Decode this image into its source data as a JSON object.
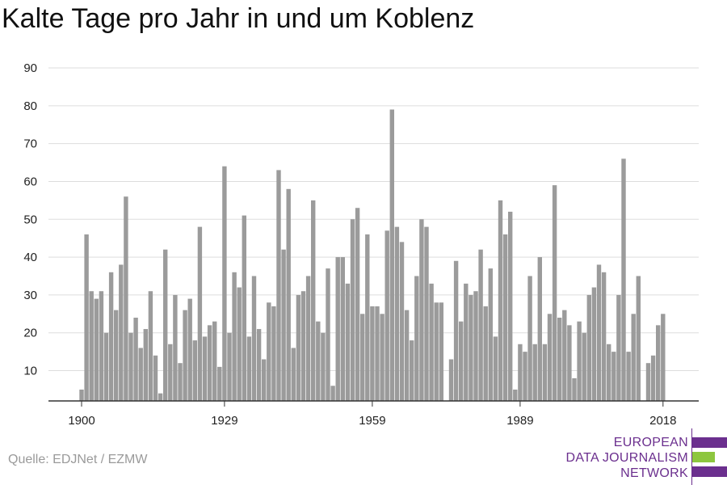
{
  "title": "Kalte Tage pro Jahr in und um Koblenz",
  "source": "Quelle: EDJNet / EZMW",
  "logo": {
    "lines": [
      "EUROPEAN",
      "DATA JOURNALISM",
      "NETWORK"
    ],
    "colors": {
      "purple": "#6b2f8e",
      "green": "#8dc63f"
    }
  },
  "chart_data": {
    "type": "bar",
    "title": "Kalte Tage pro Jahr in und um Koblenz",
    "xlabel": "",
    "ylabel": "",
    "ylim": [
      2,
      90
    ],
    "yticks": [
      10,
      20,
      30,
      40,
      50,
      60,
      70,
      80,
      90
    ],
    "xticks": [
      1900,
      1929,
      1959,
      1989,
      2018
    ],
    "grid": true,
    "bar_color": "#9b9b9b",
    "x": [
      1900,
      1901,
      1902,
      1903,
      1904,
      1905,
      1906,
      1907,
      1908,
      1909,
      1910,
      1911,
      1912,
      1913,
      1914,
      1915,
      1916,
      1917,
      1918,
      1919,
      1920,
      1921,
      1922,
      1923,
      1924,
      1925,
      1926,
      1927,
      1928,
      1929,
      1930,
      1931,
      1932,
      1933,
      1934,
      1935,
      1936,
      1937,
      1938,
      1939,
      1940,
      1941,
      1942,
      1943,
      1944,
      1945,
      1946,
      1947,
      1948,
      1949,
      1950,
      1951,
      1952,
      1953,
      1954,
      1955,
      1956,
      1957,
      1958,
      1959,
      1960,
      1961,
      1962,
      1963,
      1964,
      1965,
      1966,
      1967,
      1968,
      1969,
      1970,
      1971,
      1972,
      1973,
      1974,
      1975,
      1976,
      1977,
      1978,
      1979,
      1980,
      1981,
      1982,
      1983,
      1984,
      1985,
      1986,
      1987,
      1988,
      1989,
      1990,
      1991,
      1992,
      1993,
      1994,
      1995,
      1996,
      1997,
      1998,
      1999,
      2000,
      2001,
      2002,
      2003,
      2004,
      2005,
      2006,
      2007,
      2008,
      2009,
      2010,
      2011,
      2012,
      2013,
      2014,
      2015,
      2016,
      2017,
      2018
    ],
    "values": [
      5,
      46,
      31,
      29,
      31,
      20,
      36,
      26,
      38,
      56,
      20,
      24,
      16,
      21,
      31,
      14,
      4,
      42,
      17,
      30,
      12,
      26,
      29,
      18,
      48,
      19,
      22,
      23,
      11,
      64,
      20,
      36,
      32,
      51,
      19,
      35,
      21,
      13,
      28,
      27,
      63,
      42,
      58,
      16,
      30,
      31,
      35,
      55,
      23,
      20,
      37,
      6,
      40,
      40,
      33,
      50,
      53,
      25,
      46,
      27,
      27,
      25,
      47,
      79,
      48,
      44,
      26,
      18,
      35,
      50,
      48,
      33,
      28,
      28,
      2,
      13,
      39,
      23,
      33,
      30,
      31,
      42,
      27,
      37,
      19,
      55,
      46,
      52,
      5,
      17,
      15,
      35,
      17,
      40,
      17,
      25,
      59,
      24,
      26,
      22,
      8,
      23,
      20,
      30,
      32,
      38,
      36,
      17,
      15,
      30,
      66,
      15,
      25,
      35,
      2,
      12,
      14,
      22,
      25
    ]
  }
}
